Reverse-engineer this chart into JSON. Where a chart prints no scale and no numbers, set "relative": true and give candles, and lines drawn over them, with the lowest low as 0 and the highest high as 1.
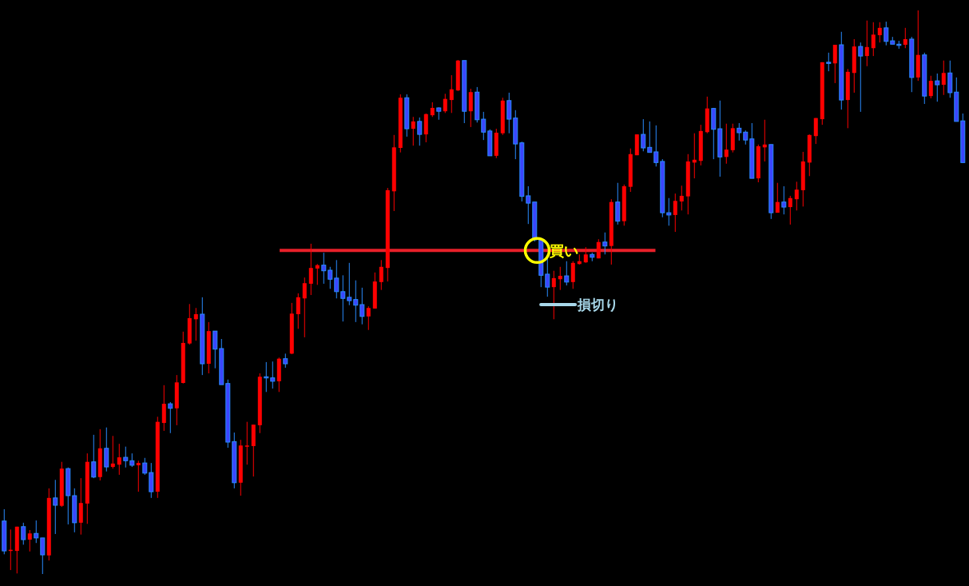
{
  "chart_data": {
    "type": "candlestick",
    "relative": true,
    "colors": [
      "#3b46ff",
      "#ff0000",
      "#ff0000",
      "#3b46ff",
      "#ff0000",
      "#3b46ff",
      "#3b46ff",
      "#ff0000",
      "#3b46ff",
      "#ff0000",
      "#3b46ff",
      "#3b46ff",
      "#ff0000",
      "#ff0000",
      "#3b46ff",
      "#ff0000",
      "#3b46ff",
      "#ff0000",
      "#ff0000",
      "#3b46ff",
      "#3b46ff",
      "#ff0000",
      "#3b46ff",
      "#3b46ff",
      "#ff0000",
      "#ff0000",
      "#3b46ff",
      "#ff0000",
      "#ff0000",
      "#ff0000",
      "#ff0000",
      "#3b46ff",
      "#ff0000",
      "#3b46ff",
      "#3b46ff",
      "#3b46ff",
      "#3b46ff",
      "#ff0000",
      "#ff0000",
      "#ff0000",
      "#ff0000",
      "#3b46ff",
      "#3b46ff",
      "#ff0000",
      "#3b46ff",
      "#ff0000",
      "#ff0000",
      "#ff0000",
      "#ff0000",
      "#ff0000",
      "#3b46ff",
      "#3b46ff",
      "#3b46ff",
      "#3b46ff",
      "#3b46ff",
      "#3b46ff",
      "#3b46ff",
      "#ff0000",
      "#ff0000",
      "#ff0000",
      "#ff0000",
      "#ff0000",
      "#ff0000",
      "#3b46ff",
      "#ff0000",
      "#3b46ff",
      "#ff0000",
      "#ff0000",
      "#3b46ff",
      "#ff0000",
      "#ff0000",
      "#ff0000",
      "#3b46ff",
      "#ff0000",
      "#3b46ff",
      "#3b46ff",
      "#3b46ff",
      "#ff0000",
      "#ff0000",
      "#3b46ff",
      "#3b46ff",
      "#3b46ff",
      "#3b46ff",
      "#3b46ff",
      "#3b46ff",
      "#3b46ff",
      "#ff0000",
      "#ff0000",
      "#3b46ff",
      "#ff0000",
      "#ff0000",
      "#ff0000",
      "#3b46ff",
      "#ff0000",
      "#3b46ff",
      "#ff0000",
      "#3b46ff",
      "#ff0000",
      "#ff0000",
      "#ff0000",
      "#3b46ff",
      "#3b46ff",
      "#3b46ff",
      "#3b46ff",
      "#3b46ff",
      "#ff0000",
      "#ff0000",
      "#ff0000",
      "#ff0000",
      "#ff0000",
      "#ff0000",
      "#3b46ff",
      "#3b46ff",
      "#ff0000",
      "#ff0000",
      "#3b46ff",
      "#3b46ff",
      "#3b46ff",
      "#ff0000",
      "#ff0000",
      "#3b46ff",
      "#ff0000",
      "#3b46ff",
      "#ff0000",
      "#ff0000",
      "#ff0000",
      "#ff0000",
      "#ff0000",
      "#ff0000",
      "#3b46ff",
      "#ff0000",
      "#3b46ff",
      "#ff0000",
      "#ff0000",
      "#3b46ff",
      "#ff0000",
      "#ff0000",
      "#ff0000",
      "#3b46ff",
      "#3b46ff",
      "#3b46ff",
      "#ff0000",
      "#3b46ff",
      "#ff0000",
      "#3b46ff",
      "#ff0000",
      "#3b46ff",
      "#ff0000",
      "#3b46ff",
      "#3b46ff",
      "#3b46ff"
    ],
    "categories": [
      null,
      null,
      null,
      null,
      null,
      null,
      null,
      null,
      null,
      null,
      null,
      null,
      null,
      null,
      null,
      null,
      null,
      null,
      null,
      null,
      null,
      null,
      null,
      null,
      null,
      null,
      null,
      null,
      null,
      null,
      null,
      null,
      null,
      null,
      null,
      null,
      null,
      null,
      null,
      null,
      null,
      null,
      null,
      null,
      null,
      null,
      null,
      null,
      null,
      null,
      null,
      null,
      null,
      null,
      null,
      null,
      null,
      null,
      null,
      null,
      null,
      null,
      null,
      null,
      null,
      null,
      null,
      null,
      null,
      null,
      null,
      null,
      null,
      null,
      null,
      null,
      null,
      null,
      null,
      null,
      null,
      null,
      null,
      null,
      null,
      null,
      null,
      null,
      null,
      null,
      null,
      null,
      null,
      null,
      null,
      null,
      null,
      null,
      null,
      null,
      null,
      null,
      null,
      null,
      null,
      null,
      null,
      null,
      null,
      null,
      null,
      null,
      null,
      null,
      null,
      null,
      null,
      null,
      null,
      null,
      null,
      null,
      null,
      null,
      null,
      null,
      null,
      null,
      null,
      null,
      null,
      null,
      null,
      null,
      null,
      null,
      null,
      null,
      null,
      null,
      null,
      null,
      null,
      null,
      null,
      null,
      null,
      null,
      null,
      null,
      null
    ],
    "ohlc": [
      [
        0.094,
        0.115,
        0.035,
        0.041
      ],
      [
        0.041,
        0.079,
        0.007,
        0.043
      ],
      [
        0.041,
        0.084,
        0.001,
        0.084
      ],
      [
        0.084,
        0.091,
        0.052,
        0.061
      ],
      [
        0.061,
        0.078,
        0.04,
        0.072
      ],
      [
        0.072,
        0.095,
        0.055,
        0.064
      ],
      [
        0.064,
        0.064,
        0.0,
        0.034
      ],
      [
        0.033,
        0.152,
        0.024,
        0.135
      ],
      [
        0.135,
        0.167,
        0.071,
        0.122
      ],
      [
        0.121,
        0.199,
        0.119,
        0.187
      ],
      [
        0.187,
        0.189,
        0.088,
        0.139
      ],
      [
        0.139,
        0.152,
        0.074,
        0.091
      ],
      [
        0.091,
        0.17,
        0.07,
        0.126
      ],
      [
        0.125,
        0.214,
        0.089,
        0.199
      ],
      [
        0.199,
        0.247,
        0.17,
        0.172
      ],
      [
        0.172,
        0.257,
        0.166,
        0.223
      ],
      [
        0.223,
        0.26,
        0.182,
        0.19
      ],
      [
        0.19,
        0.245,
        0.187,
        0.196
      ],
      [
        0.194,
        0.231,
        0.176,
        0.207
      ],
      [
        0.207,
        0.226,
        0.189,
        0.201
      ],
      [
        0.201,
        0.214,
        0.19,
        0.193
      ],
      [
        0.193,
        0.201,
        0.146,
        0.197
      ],
      [
        0.197,
        0.206,
        0.176,
        0.179
      ],
      [
        0.18,
        0.197,
        0.135,
        0.146
      ],
      [
        0.146,
        0.279,
        0.135,
        0.27
      ],
      [
        0.268,
        0.335,
        0.254,
        0.302
      ],
      [
        0.302,
        0.305,
        0.25,
        0.294
      ],
      [
        0.294,
        0.353,
        0.264,
        0.34
      ],
      [
        0.339,
        0.43,
        0.338,
        0.41
      ],
      [
        0.409,
        0.479,
        0.407,
        0.454
      ],
      [
        0.452,
        0.472,
        0.414,
        0.461
      ],
      [
        0.461,
        0.491,
        0.353,
        0.373
      ],
      [
        0.373,
        0.447,
        0.356,
        0.431
      ],
      [
        0.431,
        0.431,
        0.365,
        0.399
      ],
      [
        0.4,
        0.417,
        0.336,
        0.336
      ],
      [
        0.338,
        0.345,
        0.224,
        0.234
      ],
      [
        0.235,
        0.251,
        0.152,
        0.162
      ],
      [
        0.162,
        0.238,
        0.139,
        0.228
      ],
      [
        0.227,
        0.27,
        0.194,
        0.228
      ],
      [
        0.227,
        0.265,
        0.173,
        0.265
      ],
      [
        0.264,
        0.356,
        0.25,
        0.35
      ],
      [
        0.35,
        0.376,
        0.323,
        0.348
      ],
      [
        0.348,
        0.377,
        0.329,
        0.342
      ],
      [
        0.342,
        0.384,
        0.323,
        0.382
      ],
      [
        0.382,
        0.391,
        0.366,
        0.373
      ],
      [
        0.391,
        0.481,
        0.39,
        0.462
      ],
      [
        0.461,
        0.498,
        0.435,
        0.491
      ],
      [
        0.489,
        0.526,
        0.42,
        0.516
      ],
      [
        0.515,
        0.586,
        0.495,
        0.543
      ],
      [
        0.542,
        0.55,
        0.513,
        0.548
      ],
      [
        0.548,
        0.57,
        0.515,
        0.538
      ],
      [
        0.539,
        0.545,
        0.506,
        0.523
      ],
      [
        0.525,
        0.557,
        0.489,
        0.501
      ],
      [
        0.501,
        0.53,
        0.448,
        0.489
      ],
      [
        0.491,
        0.552,
        0.477,
        0.485
      ],
      [
        0.487,
        0.521,
        0.447,
        0.477
      ],
      [
        0.478,
        0.508,
        0.443,
        0.457
      ],
      [
        0.457,
        0.475,
        0.433,
        0.472
      ],
      [
        0.471,
        0.535,
        0.471,
        0.519
      ],
      [
        0.518,
        0.557,
        0.504,
        0.545
      ],
      [
        0.543,
        0.685,
        0.519,
        0.681
      ],
      [
        0.679,
        0.779,
        0.644,
        0.757
      ],
      [
        0.756,
        0.851,
        0.748,
        0.845
      ],
      [
        0.845,
        0.851,
        0.776,
        0.79
      ],
      [
        0.79,
        0.811,
        0.76,
        0.803
      ],
      [
        0.803,
        0.81,
        0.76,
        0.78
      ],
      [
        0.78,
        0.817,
        0.766,
        0.816
      ],
      [
        0.814,
        0.837,
        0.811,
        0.827
      ],
      [
        0.827,
        0.828,
        0.806,
        0.821
      ],
      [
        0.821,
        0.852,
        0.818,
        0.843
      ],
      [
        0.841,
        0.885,
        0.818,
        0.86
      ],
      [
        0.858,
        0.912,
        0.857,
        0.911
      ],
      [
        0.911,
        0.911,
        0.8,
        0.821
      ],
      [
        0.821,
        0.861,
        0.793,
        0.855
      ],
      [
        0.855,
        0.864,
        0.801,
        0.806
      ],
      [
        0.807,
        0.82,
        0.77,
        0.784
      ],
      [
        0.786,
        0.789,
        0.742,
        0.742
      ],
      [
        0.742,
        0.79,
        0.738,
        0.783
      ],
      [
        0.782,
        0.845,
        0.779,
        0.84
      ],
      [
        0.84,
        0.854,
        0.782,
        0.807
      ],
      [
        0.809,
        0.823,
        0.736,
        0.763
      ],
      [
        0.765,
        0.767,
        0.661,
        0.67
      ],
      [
        0.671,
        0.688,
        0.621,
        0.658
      ],
      [
        0.66,
        0.66,
        0.59,
        0.593
      ],
      [
        0.593,
        0.596,
        0.509,
        0.53
      ],
      [
        0.532,
        0.56,
        0.492,
        0.509
      ],
      [
        0.509,
        0.538,
        0.452,
        0.525
      ],
      [
        0.523,
        0.545,
        0.504,
        0.529
      ],
      [
        0.529,
        0.555,
        0.512,
        0.518
      ],
      [
        0.518,
        0.555,
        0.506,
        0.552
      ],
      [
        0.55,
        0.567,
        0.549,
        0.555
      ],
      [
        0.553,
        0.58,
        0.552,
        0.567
      ],
      [
        0.567,
        0.57,
        0.555,
        0.562
      ],
      [
        0.56,
        0.594,
        0.56,
        0.589
      ],
      [
        0.589,
        0.606,
        0.567,
        0.582
      ],
      [
        0.582,
        0.665,
        0.549,
        0.66
      ],
      [
        0.66,
        0.694,
        0.62,
        0.626
      ],
      [
        0.626,
        0.691,
        0.618,
        0.688
      ],
      [
        0.687,
        0.755,
        0.678,
        0.745
      ],
      [
        0.743,
        0.78,
        0.743,
        0.78
      ],
      [
        0.78,
        0.807,
        0.75,
        0.756
      ],
      [
        0.757,
        0.803,
        0.748,
        0.748
      ],
      [
        0.749,
        0.796,
        0.723,
        0.73
      ],
      [
        0.732,
        0.736,
        0.633,
        0.641
      ],
      [
        0.641,
        0.667,
        0.618,
        0.637
      ],
      [
        0.637,
        0.675,
        0.607,
        0.662
      ],
      [
        0.661,
        0.689,
        0.645,
        0.671
      ],
      [
        0.67,
        0.745,
        0.638,
        0.732
      ],
      [
        0.73,
        0.782,
        0.702,
        0.735
      ],
      [
        0.733,
        0.797,
        0.725,
        0.786
      ],
      [
        0.784,
        0.847,
        0.782,
        0.826
      ],
      [
        0.826,
        0.827,
        0.736,
        0.789
      ],
      [
        0.79,
        0.84,
        0.705,
        0.74
      ],
      [
        0.74,
        0.799,
        0.728,
        0.753
      ],
      [
        0.752,
        0.799,
        0.748,
        0.791
      ],
      [
        0.791,
        0.8,
        0.769,
        0.783
      ],
      [
        0.784,
        0.787,
        0.762,
        0.77
      ],
      [
        0.772,
        0.8,
        0.702,
        0.702
      ],
      [
        0.702,
        0.762,
        0.695,
        0.759
      ],
      [
        0.757,
        0.806,
        0.732,
        0.762
      ],
      [
        0.762,
        0.762,
        0.63,
        0.641
      ],
      [
        0.641,
        0.694,
        0.641,
        0.66
      ],
      [
        0.66,
        0.688,
        0.638,
        0.651
      ],
      [
        0.651,
        0.671,
        0.62,
        0.667
      ],
      [
        0.665,
        0.696,
        0.645,
        0.682
      ],
      [
        0.681,
        0.749,
        0.652,
        0.732
      ],
      [
        0.73,
        0.78,
        0.706,
        0.779
      ],
      [
        0.777,
        0.809,
        0.763,
        0.809
      ],
      [
        0.807,
        0.908,
        0.797,
        0.908
      ],
      [
        0.908,
        0.925,
        0.892,
        0.906
      ],
      [
        0.906,
        0.939,
        0.871,
        0.939
      ],
      [
        0.939,
        0.962,
        0.824,
        0.841
      ],
      [
        0.841,
        0.896,
        0.791,
        0.891
      ],
      [
        0.889,
        0.949,
        0.854,
        0.936
      ],
      [
        0.936,
        0.943,
        0.82,
        0.919
      ],
      [
        0.919,
        0.982,
        0.901,
        0.935
      ],
      [
        0.933,
        0.979,
        0.919,
        0.957
      ],
      [
        0.956,
        0.979,
        0.943,
        0.969
      ],
      [
        0.969,
        0.98,
        0.938,
        0.945
      ],
      [
        0.946,
        0.953,
        0.94,
        0.94
      ],
      [
        0.94,
        0.946,
        0.932,
        0.939
      ],
      [
        0.939,
        0.969,
        0.933,
        0.949
      ],
      [
        0.949,
        0.953,
        0.855,
        0.881
      ],
      [
        0.881,
        1.0,
        0.875,
        0.921
      ],
      [
        0.921,
        0.925,
        0.834,
        0.848
      ],
      [
        0.848,
        0.884,
        0.844,
        0.875
      ],
      [
        0.875,
        0.888,
        0.838,
        0.868
      ],
      [
        0.868,
        0.911,
        0.85,
        0.889
      ],
      [
        0.889,
        0.911,
        0.845,
        0.854
      ],
      [
        0.855,
        0.881,
        0.803,
        0.803
      ],
      [
        0.804,
        0.817,
        0.729,
        0.73
      ]
    ],
    "ref_lines": [
      {
        "axis": "y",
        "value": 0.574,
        "color": "#e8202a"
      }
    ],
    "annotations": [
      {
        "text": "買い",
        "y": 0.574
      },
      "損切り"
    ]
  }
}
